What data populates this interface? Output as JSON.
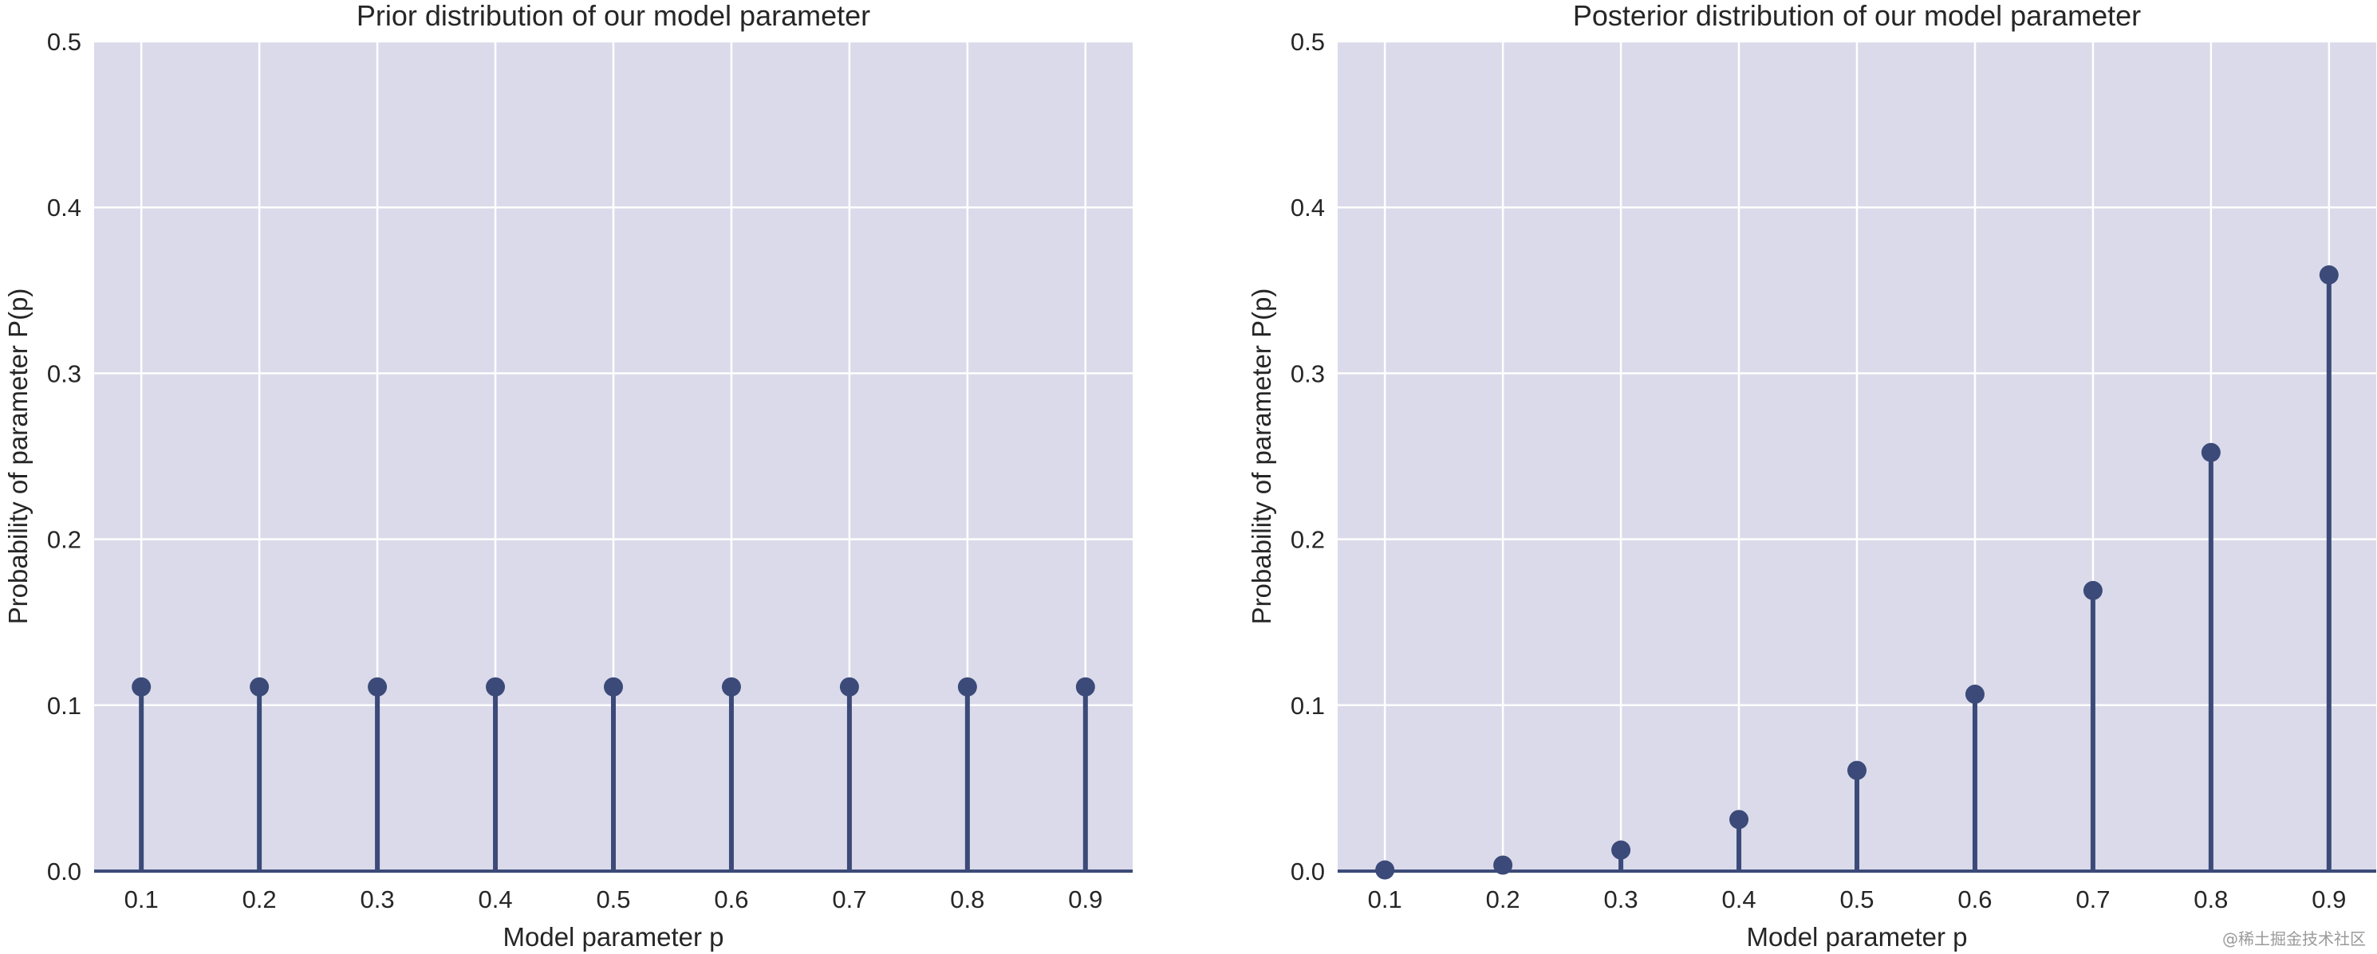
{
  "chart_data": [
    {
      "type": "stem",
      "title": "Prior distribution of our model parameter",
      "xlabel": "Model parameter p",
      "ylabel": "Probability of parameter P(p)",
      "x": [
        0.1,
        0.2,
        0.3,
        0.4,
        0.5,
        0.6,
        0.7,
        0.8,
        0.9
      ],
      "x_tick_labels": [
        "0.1",
        "0.2",
        "0.3",
        "0.4",
        "0.5",
        "0.6",
        "0.7",
        "0.8",
        "0.9"
      ],
      "values": [
        0.111,
        0.111,
        0.111,
        0.111,
        0.111,
        0.111,
        0.111,
        0.111,
        0.111
      ],
      "ylim": [
        0,
        0.5
      ],
      "y_ticks": [
        0.0,
        0.1,
        0.2,
        0.3,
        0.4,
        0.5
      ],
      "y_tick_labels": [
        "0.0",
        "0.1",
        "0.2",
        "0.3",
        "0.4",
        "0.5"
      ],
      "grid": true,
      "legend": "none"
    },
    {
      "type": "stem",
      "title": "Posterior distribution of our model parameter",
      "xlabel": "Model parameter p",
      "ylabel": "Probability of parameter P(p)",
      "x": [
        0.1,
        0.2,
        0.3,
        0.4,
        0.5,
        0.6,
        0.7,
        0.8,
        0.9
      ],
      "x_tick_labels": [
        "0.1",
        "0.2",
        "0.3",
        "0.4",
        "0.5",
        "0.6",
        "0.7",
        "0.8",
        "0.9"
      ],
      "values": [
        0.0007,
        0.0036,
        0.0127,
        0.0311,
        0.0607,
        0.1066,
        0.1691,
        0.2523,
        0.3593
      ],
      "ylim": [
        0,
        0.5
      ],
      "y_ticks": [
        0.0,
        0.1,
        0.2,
        0.3,
        0.4,
        0.5
      ],
      "y_tick_labels": [
        "0.0",
        "0.1",
        "0.2",
        "0.3",
        "0.4",
        "0.5"
      ],
      "grid": true,
      "legend": "none"
    }
  ],
  "style": {
    "plot_background": "#dadaea",
    "grid_color": "#ffffff",
    "stem_color": "#3b4a78",
    "text_color": "#262626"
  },
  "watermark": "@稀土掘金技术社区"
}
